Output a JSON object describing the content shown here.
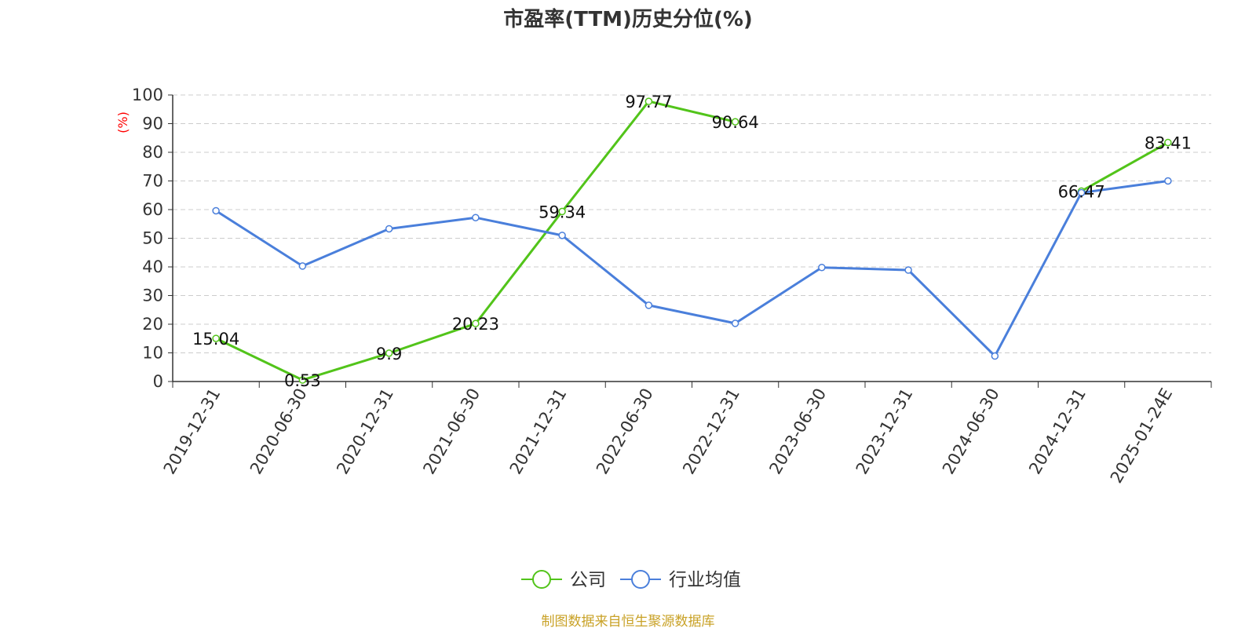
{
  "chart_data": {
    "type": "line",
    "title": "市盈率(TTM)历史分位(%)",
    "ylabel": "(%)",
    "xlabel": "",
    "ylim": [
      0,
      100
    ],
    "yticks": [
      0,
      10,
      20,
      30,
      40,
      50,
      60,
      70,
      80,
      90,
      100
    ],
    "grid": true,
    "legend_position": "bottom-center",
    "categories": [
      "2019-12-31",
      "2020-06-30",
      "2020-12-31",
      "2021-06-30",
      "2021-12-31",
      "2022-06-30",
      "2022-12-31",
      "2023-06-30",
      "2023-12-31",
      "2024-06-30",
      "2024-12-31",
      "2025-01-24E"
    ],
    "series": [
      {
        "name": "公司",
        "color": "#52c41a",
        "values": [
          15.04,
          0.53,
          9.9,
          20.23,
          59.34,
          97.77,
          90.64,
          null,
          null,
          null,
          66.47,
          83.41
        ],
        "labels": [
          "15.04",
          "0.53",
          "9.9",
          "20.23",
          "59.34",
          "97.77",
          "90.64",
          null,
          null,
          null,
          "66.47",
          "83.41"
        ]
      },
      {
        "name": "行业均值",
        "color": "#4a7fdb",
        "values": [
          59.6,
          40.3,
          53.3,
          57.2,
          51.0,
          26.6,
          20.3,
          39.8,
          38.9,
          8.9,
          65.9,
          70.0
        ]
      }
    ],
    "source": "制图数据来自恒生聚源数据库"
  }
}
